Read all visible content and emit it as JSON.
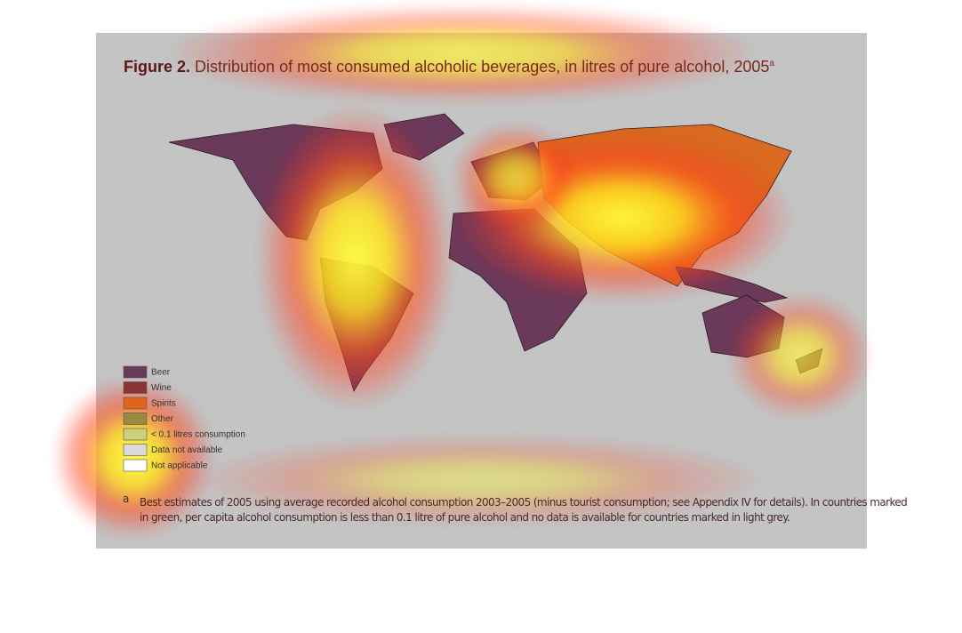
{
  "figure": {
    "label": "Figure 2.",
    "title": "Distribution of most consumed alcoholic beverages, in litres of pure alcohol, 2005",
    "title_marker": "a",
    "legend": [
      {
        "label": "Beer",
        "color": "#6b3a5a"
      },
      {
        "label": "Wine",
        "color": "#8a3535"
      },
      {
        "label": "Spirits",
        "color": "#e0651c"
      },
      {
        "label": "Other",
        "color": "#9a8a40"
      },
      {
        "label": "< 0.1 litres consumption",
        "color": "#c9d27a"
      },
      {
        "label": "Data not available",
        "color": "#dadada"
      },
      {
        "label": "Not applicable",
        "color": "#ffffff"
      }
    ],
    "footnote": {
      "marker": "a",
      "lines": [
        "Best estimates of 2005 using average recorded alcohol consumption 2003–2005 (minus tourist consumption; see Appendix IV for details). In countries marked",
        "in green, per capita alcohol consumption is less than 0.1 litre of pure alcohol and no data is available for countries marked in light grey."
      ]
    }
  }
}
